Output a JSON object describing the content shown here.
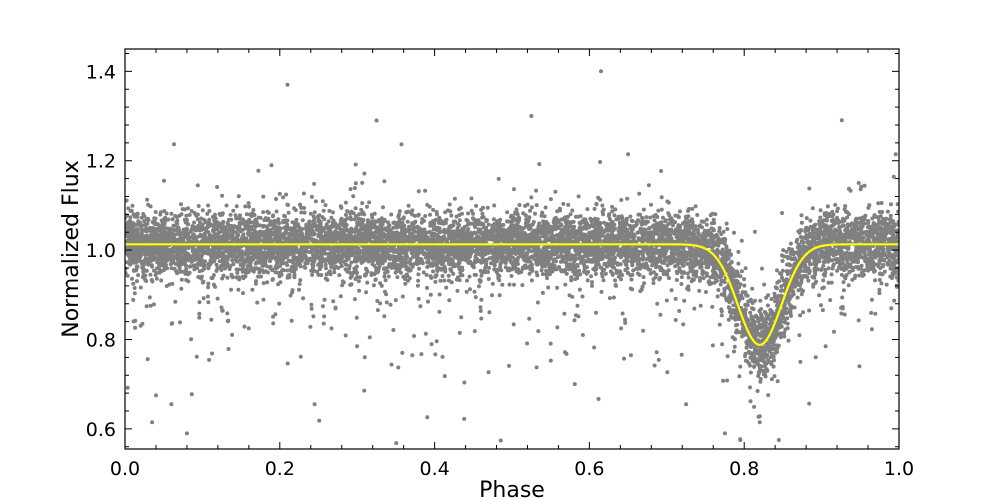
{
  "chart_data": {
    "type": "scatter",
    "xlabel": "Phase",
    "ylabel": "Normalized Flux",
    "xlim": [
      0.0,
      1.0
    ],
    "ylim": [
      0.555,
      1.45
    ],
    "x_ticks": [
      "0.0",
      "0.2",
      "0.4",
      "0.6",
      "0.8",
      "1.0"
    ],
    "y_ticks": [
      "0.6",
      "0.8",
      "1.0",
      "1.2",
      "1.4"
    ],
    "grid": false,
    "legend": "none",
    "colors": {
      "points": "#808080",
      "model": "#ffff00"
    },
    "series": [
      {
        "kind": "scatter",
        "points": [
          [
            0.08,
            0.59
          ],
          [
            0.21,
            1.37
          ],
          [
            0.615,
            1.4
          ],
          [
            0.325,
            1.29
          ],
          [
            0.525,
            1.3
          ],
          [
            0.245,
            0.655
          ],
          [
            0.725,
            0.655
          ],
          [
            0.775,
            0.59
          ],
          [
            0.795,
            0.575
          ],
          [
            0.82,
            0.615
          ],
          [
            0.04,
            0.675
          ],
          [
            0.06,
            0.655
          ],
          [
            0.035,
            0.615
          ]
        ]
      },
      {
        "kind": "line",
        "baseline": 1.013,
        "dip_center": 0.82,
        "dip_min": 0.788,
        "dip_width": 0.028
      }
    ]
  }
}
